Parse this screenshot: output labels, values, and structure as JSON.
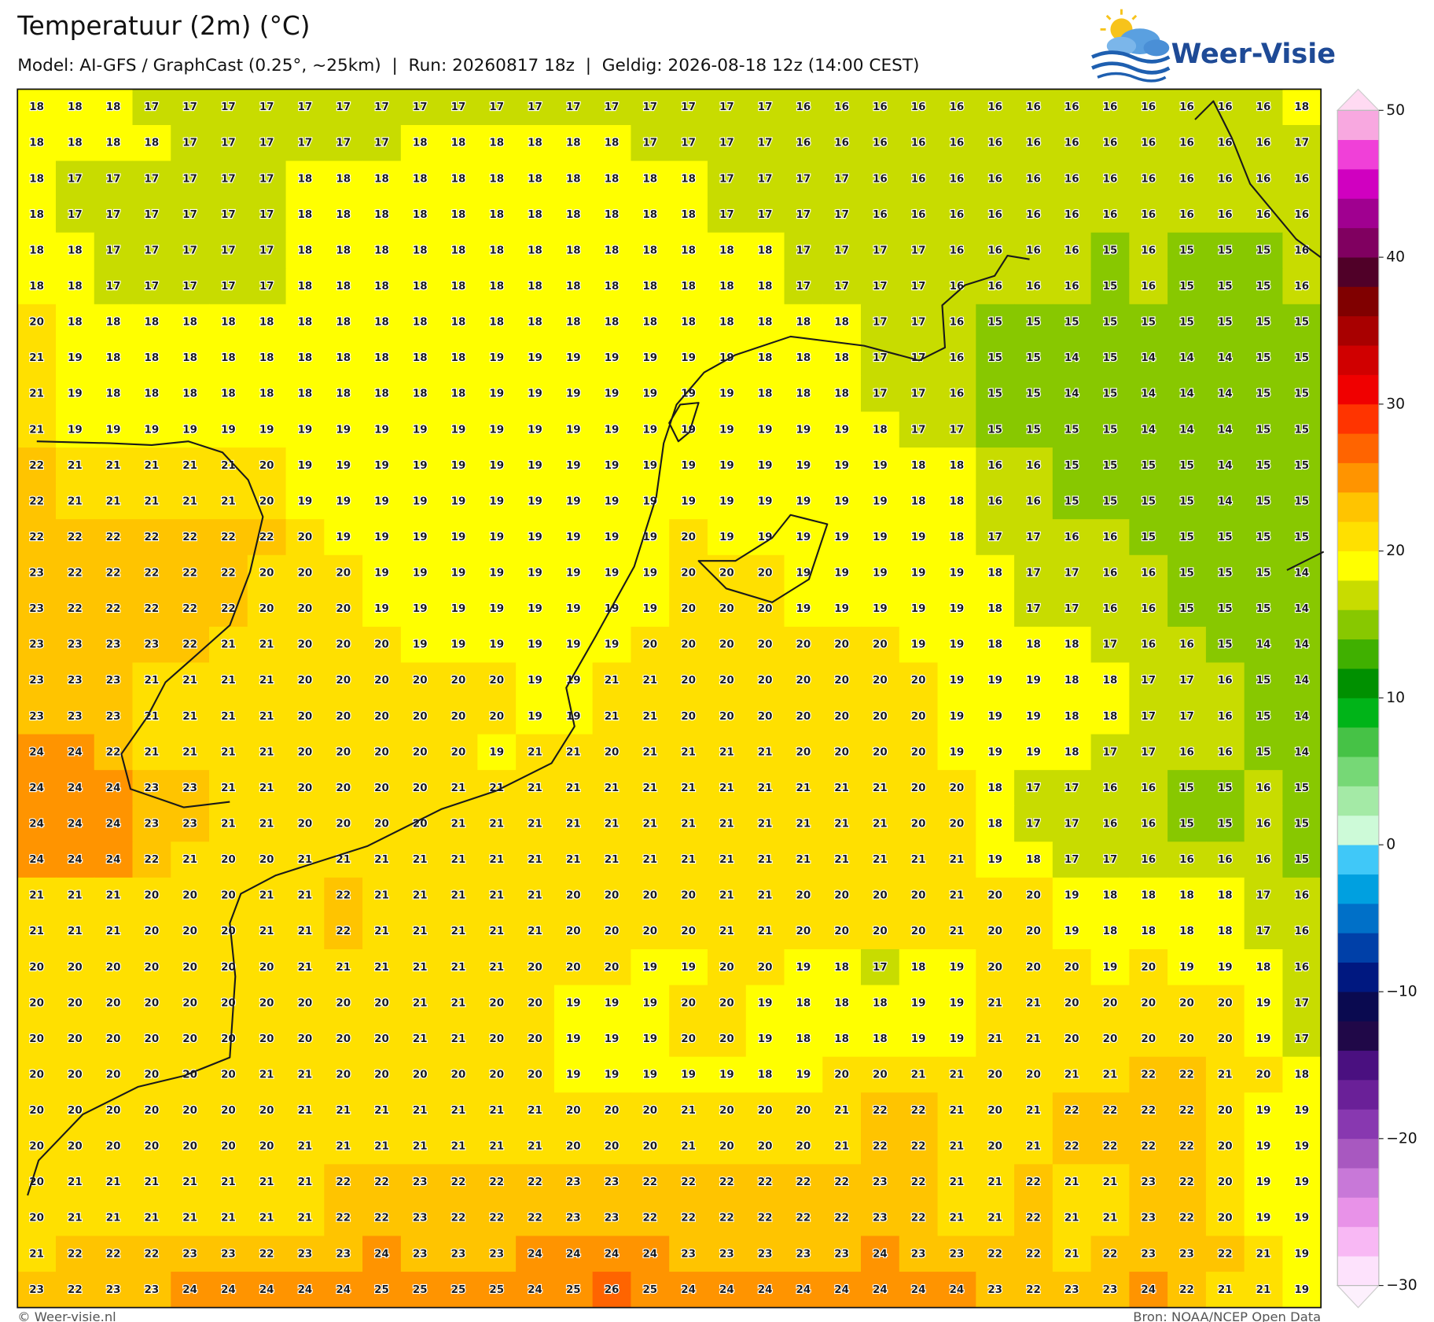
{
  "chart_data": {
    "type": "heatmap",
    "title": "Temperatuur (2m) (°C)",
    "subtitle": "Model: AI-GFS / GraphCast (0.25°, ~25km)  |  Run: 20260817 18z  |  Geldig: 2026-08-18 12z (14:00 CEST)",
    "logo": "Weer-Visie",
    "credit": "© Weer-visie.nl",
    "source": "Bron: NOAA/NCEP Open Data",
    "values": [
      [
        18,
        18,
        18,
        17,
        17,
        17,
        17,
        17,
        17,
        17,
        17,
        17,
        17,
        17,
        17,
        17,
        17,
        17,
        17,
        17,
        16,
        16,
        16,
        16,
        16,
        16,
        16,
        16,
        16,
        16,
        16,
        16,
        16,
        18
      ],
      [
        18,
        18,
        18,
        18,
        17,
        17,
        17,
        17,
        17,
        17,
        18,
        18,
        18,
        18,
        18,
        18,
        17,
        17,
        17,
        17,
        16,
        16,
        16,
        16,
        16,
        16,
        16,
        16,
        16,
        16,
        16,
        16,
        16,
        17
      ],
      [
        18,
        17,
        17,
        17,
        17,
        17,
        17,
        18,
        18,
        18,
        18,
        18,
        18,
        18,
        18,
        18,
        18,
        18,
        17,
        17,
        17,
        17,
        16,
        16,
        16,
        16,
        16,
        16,
        16,
        16,
        16,
        16,
        16,
        16
      ],
      [
        18,
        17,
        17,
        17,
        17,
        17,
        17,
        18,
        18,
        18,
        18,
        18,
        18,
        18,
        18,
        18,
        18,
        18,
        17,
        17,
        17,
        17,
        16,
        16,
        16,
        16,
        16,
        16,
        16,
        16,
        16,
        16,
        16,
        16
      ],
      [
        18,
        18,
        17,
        17,
        17,
        17,
        17,
        18,
        18,
        18,
        18,
        18,
        18,
        18,
        18,
        18,
        18,
        18,
        18,
        18,
        17,
        17,
        17,
        17,
        16,
        16,
        16,
        16,
        15,
        16,
        15,
        15,
        15,
        16
      ],
      [
        18,
        18,
        17,
        17,
        17,
        17,
        17,
        18,
        18,
        18,
        18,
        18,
        18,
        18,
        18,
        18,
        18,
        18,
        18,
        18,
        17,
        17,
        17,
        17,
        16,
        16,
        16,
        16,
        15,
        16,
        15,
        15,
        15,
        16
      ],
      [
        20,
        18,
        18,
        18,
        18,
        18,
        18,
        18,
        18,
        18,
        18,
        18,
        18,
        18,
        18,
        18,
        18,
        18,
        18,
        18,
        18,
        18,
        17,
        17,
        16,
        15,
        15,
        15,
        15,
        15,
        15,
        15,
        15,
        15
      ],
      [
        21,
        19,
        18,
        18,
        18,
        18,
        18,
        18,
        18,
        18,
        18,
        18,
        19,
        19,
        19,
        19,
        19,
        19,
        19,
        18,
        18,
        18,
        17,
        17,
        16,
        15,
        15,
        14,
        15,
        14,
        14,
        14,
        15,
        15
      ],
      [
        21,
        19,
        18,
        18,
        18,
        18,
        18,
        18,
        18,
        18,
        18,
        18,
        19,
        19,
        19,
        19,
        19,
        19,
        19,
        18,
        18,
        18,
        17,
        17,
        16,
        15,
        15,
        14,
        15,
        14,
        14,
        14,
        15,
        15
      ],
      [
        21,
        19,
        19,
        19,
        19,
        19,
        19,
        19,
        19,
        19,
        19,
        19,
        19,
        19,
        19,
        19,
        19,
        19,
        19,
        19,
        19,
        19,
        18,
        17,
        17,
        15,
        15,
        15,
        15,
        14,
        14,
        14,
        15,
        15
      ],
      [
        22,
        21,
        21,
        21,
        21,
        21,
        20,
        19,
        19,
        19,
        19,
        19,
        19,
        19,
        19,
        19,
        19,
        19,
        19,
        19,
        19,
        19,
        19,
        18,
        18,
        16,
        16,
        15,
        15,
        15,
        15,
        14,
        15,
        15
      ],
      [
        22,
        21,
        21,
        21,
        21,
        21,
        20,
        19,
        19,
        19,
        19,
        19,
        19,
        19,
        19,
        19,
        19,
        19,
        19,
        19,
        19,
        19,
        19,
        18,
        18,
        16,
        16,
        15,
        15,
        15,
        15,
        14,
        15,
        15
      ],
      [
        22,
        22,
        22,
        22,
        22,
        22,
        22,
        20,
        19,
        19,
        19,
        19,
        19,
        19,
        19,
        19,
        19,
        20,
        19,
        19,
        19,
        19,
        19,
        19,
        18,
        17,
        17,
        16,
        16,
        15,
        15,
        15,
        15,
        15
      ],
      [
        23,
        22,
        22,
        22,
        22,
        22,
        20,
        20,
        20,
        19,
        19,
        19,
        19,
        19,
        19,
        19,
        19,
        20,
        20,
        20,
        19,
        19,
        19,
        19,
        19,
        18,
        17,
        17,
        16,
        16,
        15,
        15,
        15,
        14
      ],
      [
        23,
        22,
        22,
        22,
        22,
        22,
        20,
        20,
        20,
        19,
        19,
        19,
        19,
        19,
        19,
        19,
        19,
        20,
        20,
        20,
        19,
        19,
        19,
        19,
        19,
        18,
        17,
        17,
        16,
        16,
        15,
        15,
        15,
        14
      ],
      [
        23,
        23,
        23,
        23,
        22,
        21,
        21,
        20,
        20,
        20,
        19,
        19,
        19,
        19,
        19,
        19,
        20,
        20,
        20,
        20,
        20,
        20,
        20,
        19,
        19,
        18,
        18,
        18,
        17,
        16,
        16,
        15,
        14,
        14
      ],
      [
        23,
        23,
        23,
        21,
        21,
        21,
        21,
        20,
        20,
        20,
        20,
        20,
        20,
        19,
        19,
        21,
        21,
        20,
        20,
        20,
        20,
        20,
        20,
        20,
        19,
        19,
        19,
        18,
        18,
        17,
        17,
        16,
        15,
        14
      ],
      [
        23,
        23,
        23,
        21,
        21,
        21,
        21,
        20,
        20,
        20,
        20,
        20,
        20,
        19,
        19,
        21,
        21,
        20,
        20,
        20,
        20,
        20,
        20,
        20,
        19,
        19,
        19,
        18,
        18,
        17,
        17,
        16,
        15,
        14
      ],
      [
        24,
        24,
        22,
        21,
        21,
        21,
        21,
        20,
        20,
        20,
        20,
        20,
        19,
        21,
        21,
        20,
        21,
        21,
        21,
        21,
        20,
        20,
        20,
        20,
        19,
        19,
        19,
        18,
        17,
        17,
        16,
        16,
        15,
        14
      ],
      [
        24,
        24,
        24,
        23,
        23,
        21,
        21,
        20,
        20,
        20,
        20,
        21,
        21,
        21,
        21,
        21,
        21,
        21,
        21,
        21,
        21,
        21,
        21,
        20,
        20,
        18,
        17,
        17,
        16,
        16,
        15,
        15,
        16,
        15
      ],
      [
        24,
        24,
        24,
        23,
        23,
        21,
        21,
        20,
        20,
        20,
        20,
        21,
        21,
        21,
        21,
        21,
        21,
        21,
        21,
        21,
        21,
        21,
        21,
        20,
        20,
        18,
        17,
        17,
        16,
        16,
        15,
        15,
        16,
        15
      ],
      [
        24,
        24,
        24,
        22,
        21,
        20,
        20,
        21,
        21,
        21,
        21,
        21,
        21,
        21,
        21,
        21,
        21,
        21,
        21,
        21,
        21,
        21,
        21,
        21,
        21,
        19,
        18,
        17,
        17,
        16,
        16,
        16,
        16,
        15
      ],
      [
        21,
        21,
        21,
        20,
        20,
        20,
        21,
        21,
        22,
        21,
        21,
        21,
        21,
        21,
        20,
        20,
        20,
        20,
        21,
        21,
        20,
        20,
        20,
        20,
        21,
        20,
        20,
        19,
        18,
        18,
        18,
        18,
        17,
        16
      ],
      [
        21,
        21,
        21,
        20,
        20,
        20,
        21,
        21,
        22,
        21,
        21,
        21,
        21,
        21,
        20,
        20,
        20,
        20,
        21,
        21,
        20,
        20,
        20,
        20,
        21,
        20,
        20,
        19,
        18,
        18,
        18,
        18,
        17,
        16
      ],
      [
        20,
        20,
        20,
        20,
        20,
        20,
        20,
        21,
        21,
        21,
        21,
        21,
        21,
        20,
        20,
        20,
        19,
        19,
        20,
        20,
        19,
        18,
        17,
        18,
        19,
        20,
        20,
        20,
        19,
        20,
        19,
        19,
        18,
        16
      ],
      [
        20,
        20,
        20,
        20,
        20,
        20,
        20,
        20,
        20,
        20,
        21,
        21,
        20,
        20,
        19,
        19,
        19,
        20,
        20,
        19,
        18,
        18,
        18,
        19,
        19,
        21,
        21,
        20,
        20,
        20,
        20,
        20,
        19,
        17
      ],
      [
        20,
        20,
        20,
        20,
        20,
        20,
        20,
        20,
        20,
        20,
        21,
        21,
        20,
        20,
        19,
        19,
        19,
        20,
        20,
        19,
        18,
        18,
        18,
        19,
        19,
        21,
        21,
        20,
        20,
        20,
        20,
        20,
        19,
        17
      ],
      [
        20,
        20,
        20,
        20,
        20,
        20,
        21,
        21,
        20,
        20,
        20,
        20,
        20,
        20,
        19,
        19,
        19,
        19,
        19,
        18,
        19,
        20,
        20,
        21,
        21,
        20,
        20,
        21,
        21,
        22,
        22,
        21,
        20,
        18
      ],
      [
        20,
        20,
        20,
        20,
        20,
        20,
        20,
        21,
        21,
        21,
        21,
        21,
        21,
        21,
        20,
        20,
        20,
        21,
        20,
        20,
        20,
        21,
        22,
        22,
        21,
        20,
        21,
        22,
        22,
        22,
        22,
        20,
        19,
        19
      ],
      [
        20,
        20,
        20,
        20,
        20,
        20,
        20,
        21,
        21,
        21,
        21,
        21,
        21,
        21,
        20,
        20,
        20,
        21,
        20,
        20,
        20,
        21,
        22,
        22,
        21,
        20,
        21,
        22,
        22,
        22,
        22,
        20,
        19,
        19
      ],
      [
        20,
        21,
        21,
        21,
        21,
        21,
        21,
        21,
        22,
        22,
        23,
        22,
        22,
        22,
        23,
        23,
        22,
        22,
        22,
        22,
        22,
        22,
        23,
        22,
        21,
        21,
        22,
        21,
        21,
        23,
        22,
        20,
        19,
        19
      ],
      [
        20,
        21,
        21,
        21,
        21,
        21,
        21,
        21,
        22,
        22,
        23,
        22,
        22,
        22,
        23,
        23,
        22,
        22,
        22,
        22,
        22,
        22,
        23,
        22,
        21,
        21,
        22,
        21,
        21,
        23,
        22,
        20,
        19,
        19
      ],
      [
        21,
        22,
        22,
        22,
        23,
        23,
        22,
        23,
        23,
        24,
        23,
        23,
        23,
        24,
        24,
        24,
        24,
        23,
        23,
        23,
        23,
        23,
        24,
        23,
        23,
        22,
        22,
        21,
        22,
        23,
        23,
        22,
        21,
        19
      ],
      [
        23,
        22,
        23,
        23,
        24,
        24,
        24,
        24,
        24,
        25,
        25,
        25,
        25,
        24,
        25,
        26,
        25,
        24,
        24,
        24,
        24,
        24,
        24,
        24,
        24,
        23,
        22,
        23,
        23,
        24,
        22,
        21,
        21,
        19
      ]
    ],
    "colorbar": {
      "lim": [
        -30,
        50
      ],
      "ticks": [
        50,
        40,
        30,
        20,
        10,
        0,
        {
          "value": -10,
          "label": "−10"
        },
        {
          "value": -20,
          "label": "−20"
        },
        {
          "value": -30,
          "label": "−30"
        }
      ],
      "colors": [
        "#fde2fc",
        "#f8b8f4",
        "#e892e8",
        "#c878d8",
        "#a858c0",
        "#8838b0",
        "#6a2098",
        "#4a1080",
        "#200848",
        "#0a0a50",
        "#001880",
        "#0040a8",
        "#0070c8",
        "#00a0e0",
        "#40c8f8",
        "#cdfad8",
        "#a4eaa6",
        "#76d876",
        "#46c246",
        "#00b418",
        "#009000",
        "#40b000",
        "#88c800",
        "#c8dc00",
        "#ffff00",
        "#ffe000",
        "#ffc400",
        "#ff9400",
        "#ff6400",
        "#ff3400",
        "#f00000",
        "#d00000",
        "#a80000",
        "#800000",
        "#500028",
        "#800060",
        "#a00090",
        "#d000c0",
        "#f040d8",
        "#f8a8e0"
      ],
      "under_color": "#fdf0fd",
      "over_color": "#ffdaf2"
    }
  }
}
